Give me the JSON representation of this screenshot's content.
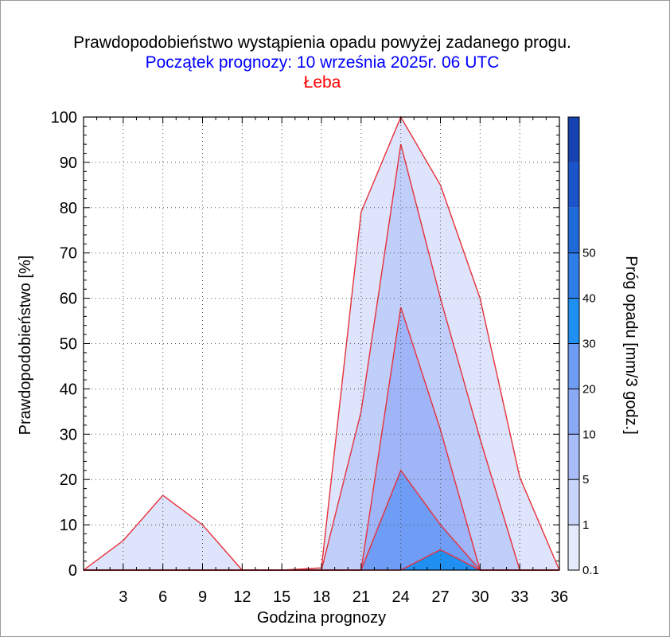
{
  "title": "Prawdopodobieństwo wystąpienia opadu powyżej zadanego progu.",
  "subtitle": "Początek prognozy: 10 września 2025r. 06 UTC",
  "location": "Łeba",
  "colors": {
    "title": "#000000",
    "subtitle": "#0000ff",
    "location": "#ff0000",
    "outline": "#e8303a"
  },
  "chart_data": {
    "type": "area",
    "title": "Prawdopodobieństwo wystąpienia opadu powyżej zadanego progu.",
    "xlabel": "Godzina prognozy",
    "ylabel": "Prawdopodobieństwo [%]",
    "xlim": [
      0,
      36
    ],
    "ylim": [
      0,
      100
    ],
    "x": [
      0,
      3,
      6,
      9,
      12,
      15,
      18,
      21,
      24,
      27,
      30,
      33,
      36
    ],
    "x_ticks": [
      3,
      6,
      9,
      12,
      15,
      18,
      21,
      24,
      27,
      30,
      33,
      36
    ],
    "y_ticks": [
      0,
      10,
      20,
      30,
      40,
      50,
      60,
      70,
      80,
      90,
      100
    ],
    "series": [
      {
        "name": "0.1",
        "color": "#dde4fb",
        "values": [
          0,
          6.5,
          16.5,
          10,
          0,
          0,
          0.5,
          79,
          100,
          85,
          60,
          20.5,
          0
        ]
      },
      {
        "name": "1",
        "color": "#c0cefa",
        "values": [
          0,
          0,
          0,
          0,
          0,
          0,
          0,
          35,
          94,
          60,
          29,
          0,
          0
        ]
      },
      {
        "name": "5",
        "color": "#9fb5f8",
        "values": [
          0,
          0,
          0,
          0,
          0,
          0,
          0,
          0,
          58,
          31,
          0,
          0,
          0
        ]
      },
      {
        "name": "10",
        "color": "#6f9df5",
        "values": [
          0,
          0,
          0,
          0,
          0,
          0,
          0,
          0,
          22,
          10,
          0,
          0,
          0
        ]
      },
      {
        "name": "20",
        "color": "#1f90f2",
        "values": [
          0,
          0,
          0,
          0,
          0,
          0,
          0,
          0,
          0,
          4.5,
          0,
          0,
          0
        ]
      }
    ],
    "colorbar": {
      "label": "Próg opadu [mm/3 godz.]",
      "ticks": [
        "0.1",
        "1",
        "5",
        "10",
        "20",
        "30",
        "40",
        "50"
      ],
      "colors": [
        "#e6ebfc",
        "#c9d4fa",
        "#a8bcf8",
        "#8aaaf6",
        "#6f9df5",
        "#1f90f2",
        "#2f7ee8",
        "#1f6ad8",
        "#1a54c8",
        "#1643b0"
      ]
    },
    "grid": true,
    "legend": "colorbar-right"
  }
}
